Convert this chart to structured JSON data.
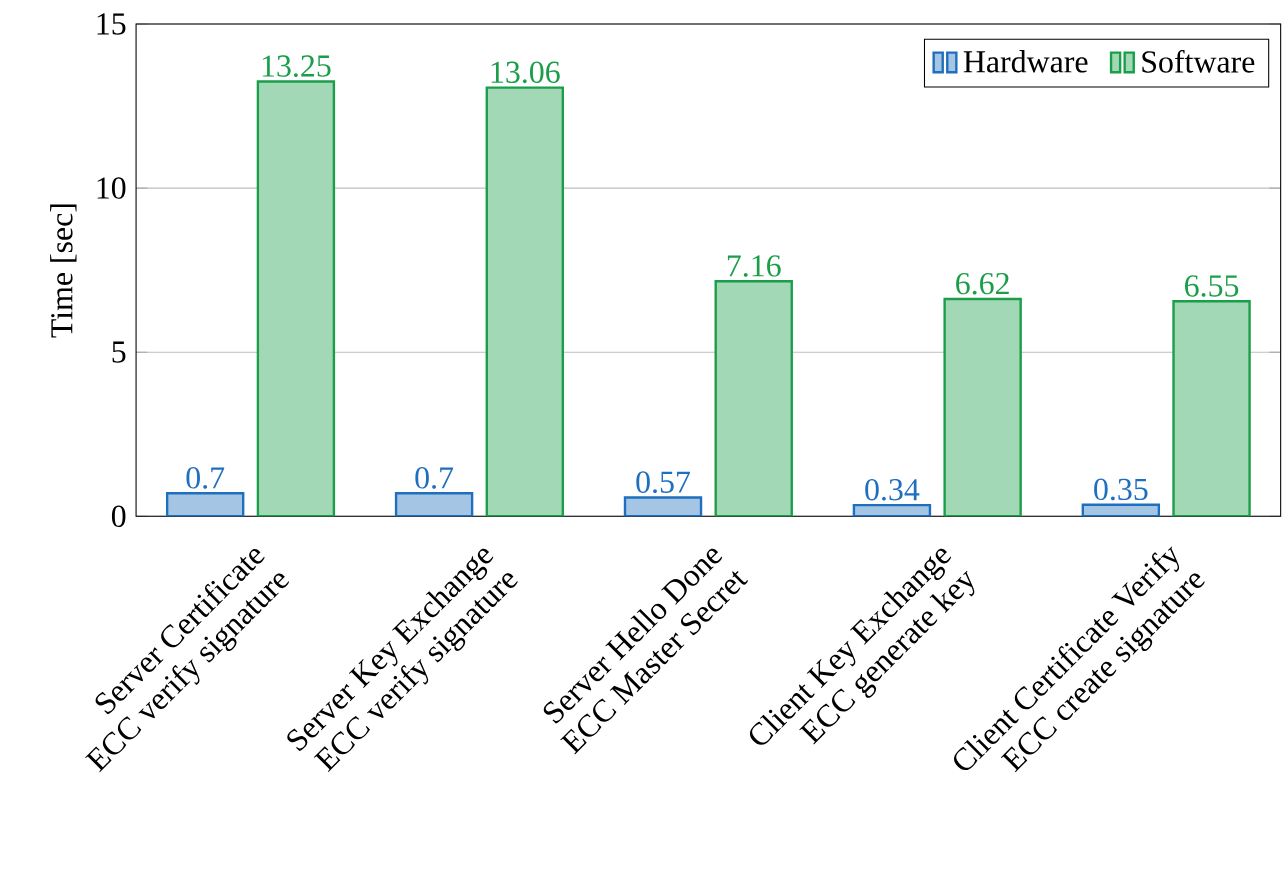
{
  "chart_data": {
    "type": "bar",
    "ylabel": "Time [sec]",
    "categories": [
      "Server Certificate\nECC verify signature",
      "Server Key Exchange\nECC verify signature",
      "Server Hello Done\nECC Master Secret",
      "Client Key Exchange\nECC generate key",
      "Client Certificate Verify\nECC create signature"
    ],
    "series": [
      {
        "name": "Hardware",
        "color": "#1f6fbf",
        "values": [
          0.7,
          0.7,
          0.57,
          0.34,
          0.35
        ]
      },
      {
        "name": "Software",
        "color": "#1a9e4a",
        "values": [
          13.25,
          13.06,
          7.16,
          6.62,
          6.55
        ]
      }
    ],
    "ylim": [
      0,
      15
    ],
    "yticks": [
      0,
      5,
      10,
      15
    ],
    "grid": "y",
    "legend": "top right",
    "data_labels": true
  }
}
